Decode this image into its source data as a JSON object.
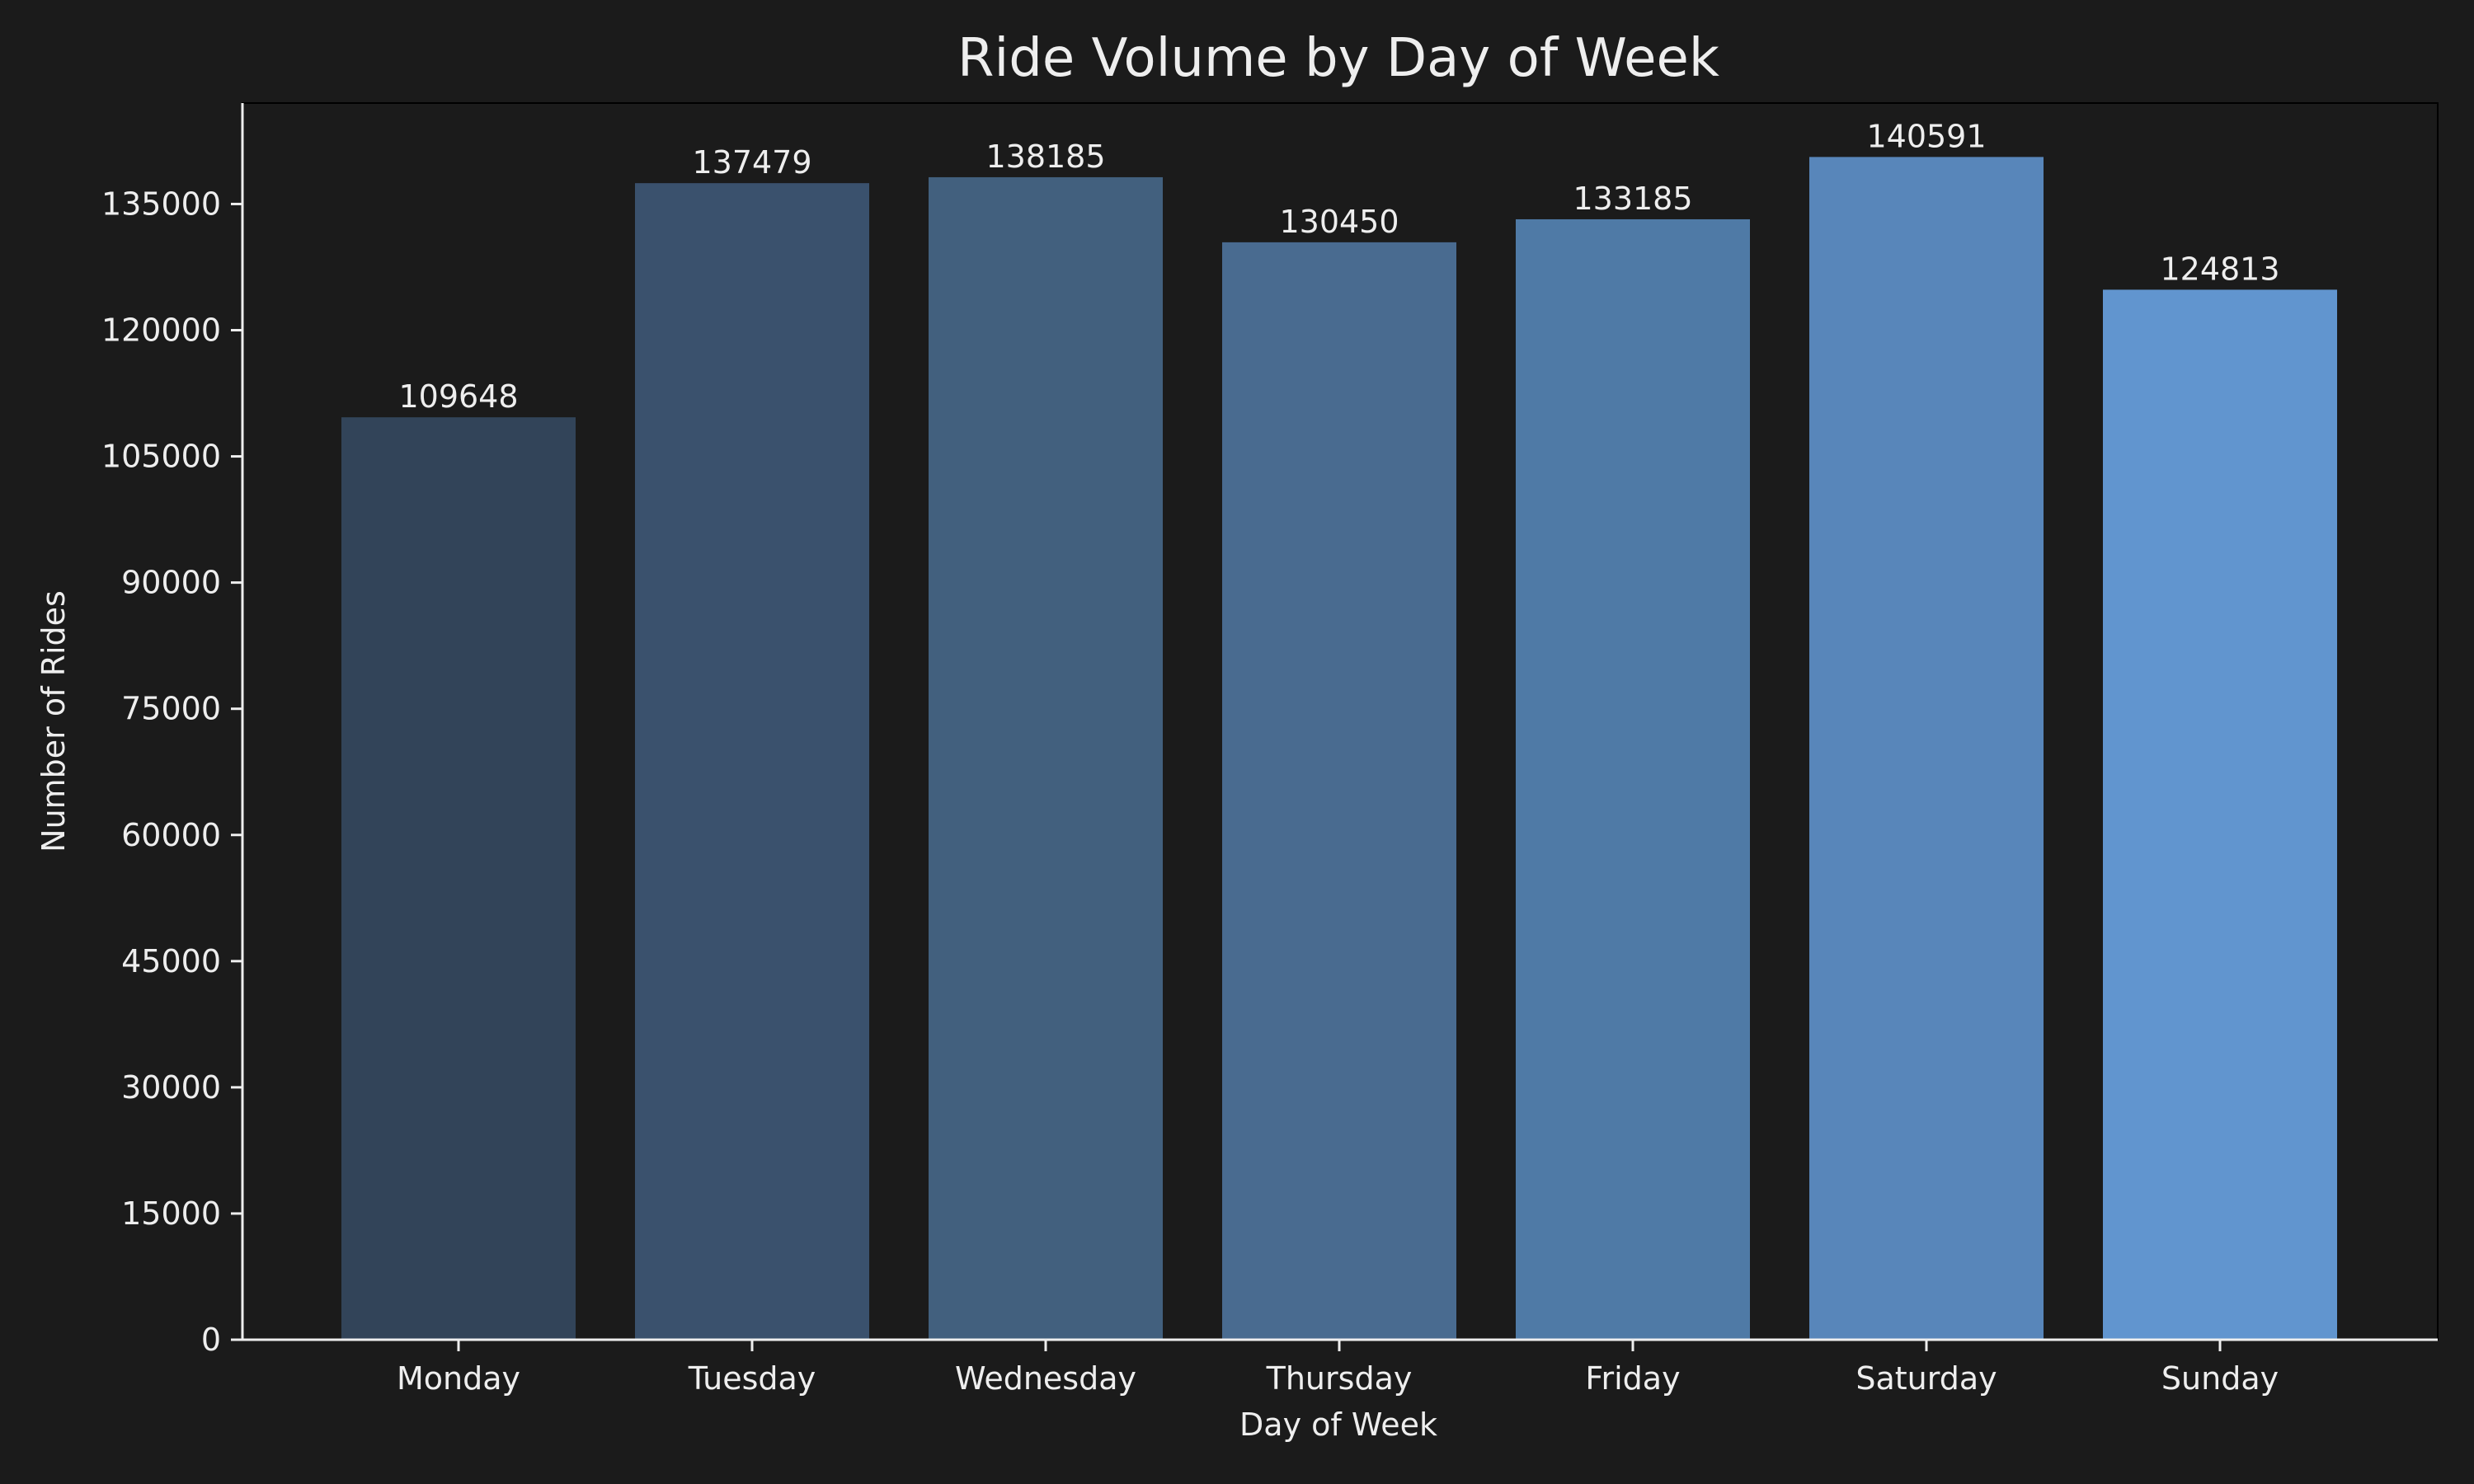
{
  "chart_data": {
    "type": "bar",
    "title": "Ride Volume by Day of Week",
    "xlabel": "Day of Week",
    "ylabel": "Number of Rides",
    "categories": [
      "Monday",
      "Tuesday",
      "Wednesday",
      "Thursday",
      "Friday",
      "Saturday",
      "Sunday"
    ],
    "values": [
      109648,
      137479,
      138185,
      130450,
      133185,
      140591,
      124813
    ],
    "ylim": [
      0,
      147000
    ],
    "yticks": [
      0,
      15000,
      30000,
      45000,
      60000,
      75000,
      90000,
      105000,
      120000,
      135000
    ],
    "colors": [
      "#324459",
      "#3a516d",
      "#42607e",
      "#496b90",
      "#4f7aa6",
      "#5886ba",
      "#6195cf"
    ],
    "background": "#1b1b1b",
    "text_color": "#eeeeee",
    "grid": false,
    "legend": "none"
  }
}
